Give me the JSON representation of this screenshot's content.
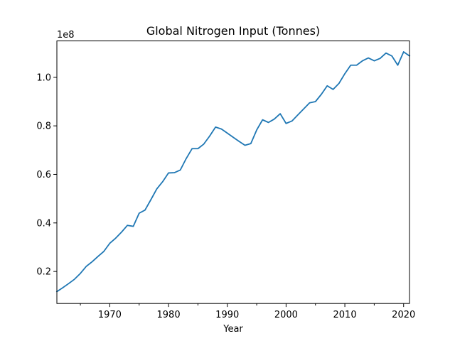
{
  "chart_data": {
    "type": "line",
    "title": "Global Nitrogen Input (Tonnes)",
    "xlabel": "Year",
    "ylabel": "",
    "y_offset_text": "1e8",
    "xlim": [
      1961,
      2021
    ],
    "ylim": [
      6800000,
      115000000
    ],
    "grid": false,
    "x_ticks": [
      1970,
      1980,
      1990,
      2000,
      2010,
      2020
    ],
    "x_tick_labels": [
      "1970",
      "1980",
      "1990",
      "2000",
      "2010",
      "2020"
    ],
    "y_ticks": [
      20000000,
      40000000,
      60000000,
      80000000,
      100000000
    ],
    "y_tick_labels": [
      "0.2",
      "0.4",
      "0.6",
      "0.8",
      "1.0"
    ],
    "color": "#1f77b4",
    "x": [
      1961,
      1962,
      1963,
      1964,
      1965,
      1966,
      1967,
      1968,
      1969,
      1970,
      1971,
      1972,
      1973,
      1974,
      1975,
      1976,
      1977,
      1978,
      1979,
      1980,
      1981,
      1982,
      1983,
      1984,
      1985,
      1986,
      1987,
      1988,
      1989,
      1990,
      1991,
      1992,
      1993,
      1994,
      1995,
      1996,
      1997,
      1998,
      1999,
      2000,
      2001,
      2002,
      2003,
      2004,
      2005,
      2006,
      2007,
      2008,
      2009,
      2010,
      2011,
      2012,
      2013,
      2014,
      2015,
      2016,
      2017,
      2018,
      2019,
      2020,
      2021
    ],
    "y": [
      11700000,
      13300000,
      15000000,
      16800000,
      19200000,
      22100000,
      24000000,
      26200000,
      28300000,
      31600000,
      33700000,
      36200000,
      39000000,
      38600000,
      44000000,
      45300000,
      49600000,
      54000000,
      57000000,
      60600000,
      60700000,
      61800000,
      66500000,
      70600000,
      70600000,
      72500000,
      75800000,
      79500000,
      78700000,
      77000000,
      75300000,
      73600000,
      72000000,
      72700000,
      78300000,
      82500000,
      81400000,
      82800000,
      85000000,
      81000000,
      82000000,
      84500000,
      87000000,
      89500000,
      90000000,
      93000000,
      96500000,
      95000000,
      97500000,
      101500000,
      105000000,
      105000000,
      106800000,
      108000000,
      106800000,
      107800000,
      110000000,
      108800000,
      105000000,
      110500000,
      108800000
    ]
  }
}
